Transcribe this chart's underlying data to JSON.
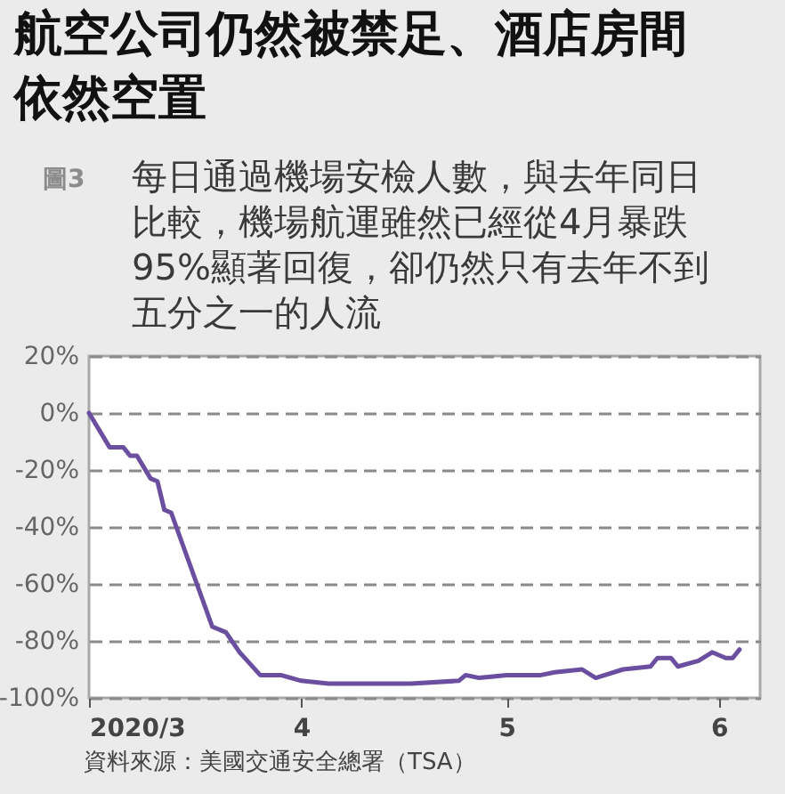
{
  "chart_data": {
    "type": "line",
    "title": "航空公司仍然被禁足、酒店房間依然空置",
    "subtitle": "每日通過機場安檢人數，與去年同日比較，機場航運雖然已經從4月暴跌95%顯著回復，卻仍然只有去年不到五分之一的人流",
    "annotations": [
      "圖3",
      "資料來源：美國交通安全總署（TSA）"
    ],
    "x": [
      "2020-03-01",
      "2020-03-04",
      "2020-03-06",
      "2020-03-07",
      "2020-03-08",
      "2020-03-10",
      "2020-03-11",
      "2020-03-12",
      "2020-03-13",
      "2020-03-19",
      "2020-03-21",
      "2020-03-23",
      "2020-03-26",
      "2020-03-29",
      "2020-04-01",
      "2020-04-05",
      "2020-04-12",
      "2020-04-17",
      "2020-04-24",
      "2020-04-25",
      "2020-04-27",
      "2020-05-01",
      "2020-05-06",
      "2020-05-08",
      "2020-05-12",
      "2020-05-14",
      "2020-05-18",
      "2020-05-22",
      "2020-05-23",
      "2020-05-25",
      "2020-05-26",
      "2020-05-29",
      "2020-05-31",
      "2020-06-02",
      "2020-06-03",
      "2020-06-04"
    ],
    "series": [
      {
        "color": "#6a4fa0",
        "values": [
          0,
          -12,
          -12,
          -15,
          -15,
          -23,
          -24,
          -34,
          -35,
          -75,
          -77,
          -84,
          -92,
          -92,
          -94,
          -95,
          -95,
          -95,
          -94,
          -92,
          -93,
          -92,
          -92,
          -91,
          -90,
          -93,
          -90,
          -89,
          -86,
          -86,
          -89,
          -87,
          -84,
          -86,
          -86,
          -83
        ]
      }
    ],
    "xlim": [
      "2020-03-01",
      "2020-06-07"
    ],
    "xticks": [
      {
        "value": "2020-03-01",
        "label": "2020/3"
      },
      {
        "value": "2020-04-01",
        "label": "4"
      },
      {
        "value": "2020-05-01",
        "label": "5"
      },
      {
        "value": "2020-06-01",
        "label": "6"
      }
    ],
    "ylim": [
      -100,
      20
    ],
    "yticks": [
      {
        "value": 20,
        "label": "20%"
      },
      {
        "value": 0,
        "label": "0%"
      },
      {
        "value": -20,
        "label": "-20%"
      },
      {
        "value": -40,
        "label": "-40%"
      },
      {
        "value": -60,
        "label": "-60%"
      },
      {
        "value": -80,
        "label": "-80%"
      },
      {
        "value": -100,
        "label": "-100%"
      }
    ],
    "grid": "y",
    "line_style": "solid",
    "marker": "none"
  }
}
